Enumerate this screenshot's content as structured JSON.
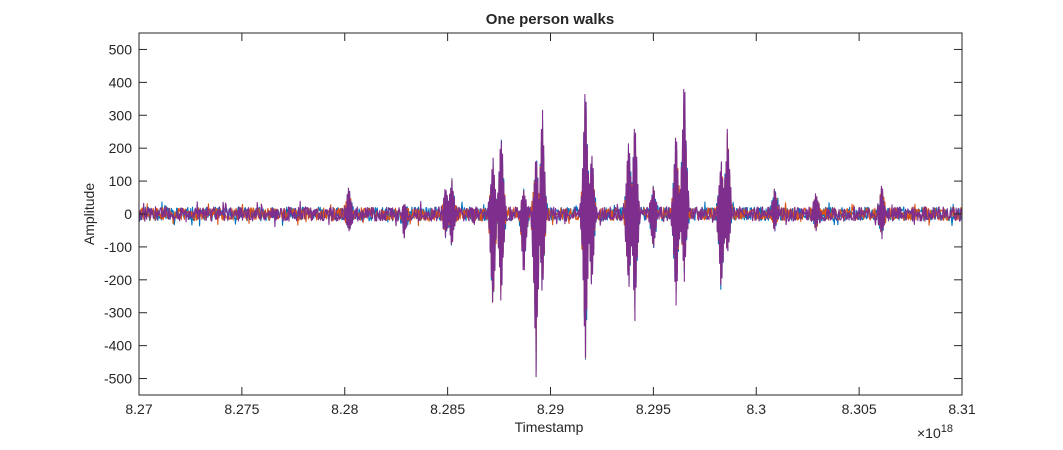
{
  "chart_data": {
    "type": "line",
    "title": "One person walks",
    "xlabel": "Timestamp",
    "ylabel": "Amplitude",
    "x_multiplier": "×10",
    "x_exponent": "18",
    "xlim": [
      8.27,
      8.31
    ],
    "ylim": [
      -550,
      550
    ],
    "x_ticks": [
      8.27,
      8.275,
      8.28,
      8.285,
      8.29,
      8.295,
      8.3,
      8.305,
      8.31
    ],
    "x_tick_labels": [
      "8.27",
      "8.275",
      "8.28",
      "8.285",
      "8.29",
      "8.295",
      "8.3",
      "8.305",
      "8.31"
    ],
    "y_ticks": [
      -500,
      -400,
      -300,
      -200,
      -100,
      0,
      100,
      200,
      300,
      400,
      500
    ],
    "y_tick_labels": [
      "-500",
      "-400",
      "-300",
      "-200",
      "-100",
      "0",
      "100",
      "200",
      "300",
      "400",
      "500"
    ],
    "grid": false,
    "legend": "none",
    "colors": [
      "#0072bd",
      "#d95319",
      "#7e2f8e"
    ],
    "noise_amplitude": 22,
    "spikes": [
      {
        "x": 8.2802,
        "max": 90,
        "min": -60
      },
      {
        "x": 8.2829,
        "max": 35,
        "min": -80
      },
      {
        "x": 8.2849,
        "max": 90,
        "min": -80
      },
      {
        "x": 8.2852,
        "max": 125,
        "min": -115
      },
      {
        "x": 8.2872,
        "max": 185,
        "min": -345
      },
      {
        "x": 8.2876,
        "max": 275,
        "min": -290
      },
      {
        "x": 8.2887,
        "max": 80,
        "min": -210
      },
      {
        "x": 8.2893,
        "max": 200,
        "min": -505
      },
      {
        "x": 8.2896,
        "max": 345,
        "min": -260
      },
      {
        "x": 8.2917,
        "max": 440,
        "min": -490
      },
      {
        "x": 8.292,
        "max": 210,
        "min": -250
      },
      {
        "x": 8.2938,
        "max": 260,
        "min": -280
      },
      {
        "x": 8.2941,
        "max": 305,
        "min": -340
      },
      {
        "x": 8.295,
        "max": 100,
        "min": -120
      },
      {
        "x": 8.2961,
        "max": 280,
        "min": -300
      },
      {
        "x": 8.2965,
        "max": 465,
        "min": -210
      },
      {
        "x": 8.2983,
        "max": 180,
        "min": -280
      },
      {
        "x": 8.2986,
        "max": 290,
        "min": -140
      },
      {
        "x": 8.3009,
        "max": 90,
        "min": -60
      },
      {
        "x": 8.3029,
        "max": 75,
        "min": -60
      },
      {
        "x": 8.3061,
        "max": 100,
        "min": -80
      }
    ]
  }
}
